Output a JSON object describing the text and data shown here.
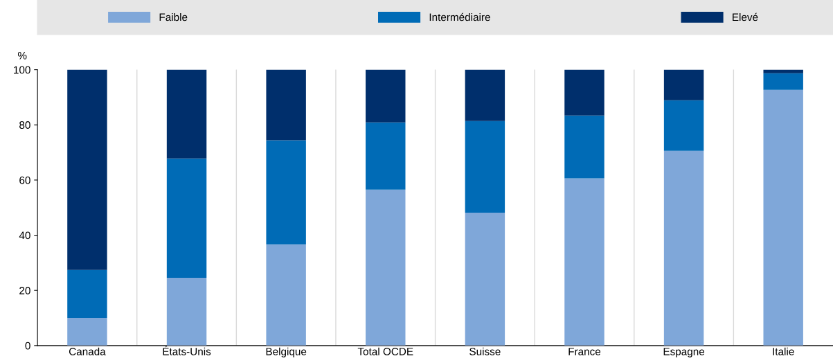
{
  "chart_data": {
    "type": "bar",
    "stacked": true,
    "ylabel": "%",
    "categories": [
      "Canada",
      "États-Unis",
      "Belgique",
      "Total OCDE",
      "Suisse",
      "France",
      "Espagne",
      "Italie"
    ],
    "series": [
      {
        "name": "Faible",
        "color": "#7fa7d9",
        "values": [
          10.0,
          24.6,
          36.7,
          56.5,
          48.2,
          60.6,
          70.6,
          92.7
        ]
      },
      {
        "name": "Intermédiaire",
        "color": "#006bb6",
        "values": [
          17.4,
          43.2,
          37.7,
          24.4,
          33.2,
          22.8,
          18.3,
          6.0
        ]
      },
      {
        "name": "Elevé",
        "color": "#002f6c",
        "values": [
          72.6,
          32.2,
          25.6,
          19.1,
          18.6,
          16.6,
          11.1,
          1.3
        ]
      }
    ],
    "ylim": [
      0,
      100
    ],
    "yticks": [
      0,
      20,
      40,
      60,
      80,
      100
    ],
    "grid": "x",
    "legend": "top"
  }
}
